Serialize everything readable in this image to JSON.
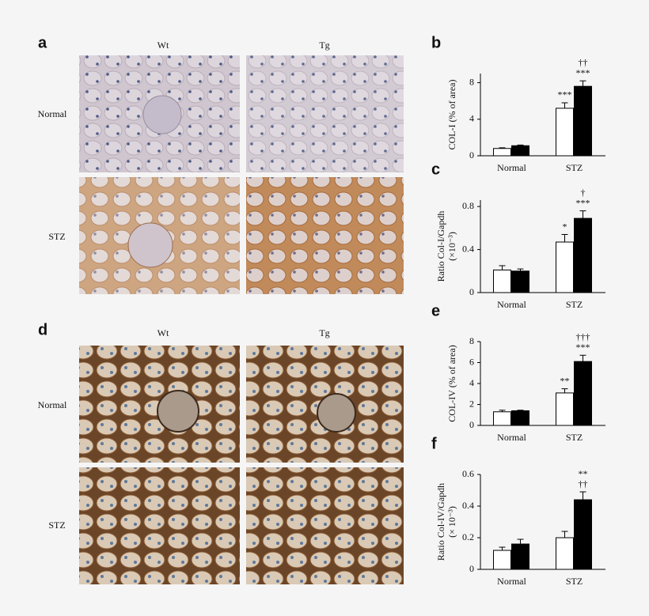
{
  "figure": {
    "panels": [
      {
        "label": "a",
        "columns": [
          "Wt",
          "Tg"
        ],
        "rows": [
          "Normal",
          "STZ"
        ]
      },
      {
        "label": "d",
        "columns": [
          "Wt",
          "Tg"
        ],
        "rows": [
          "Normal",
          "STZ"
        ]
      }
    ]
  },
  "chart_data": [
    {
      "type": "bar",
      "label": "b",
      "ylabel": [
        "COL-I  (% of area)"
      ],
      "categories": [
        "Normal",
        "STZ"
      ],
      "ylim": [
        0,
        9
      ],
      "yticks": [
        0,
        4,
        8
      ],
      "series": [
        {
          "color": "#ffffff",
          "values": [
            0.8,
            5.2
          ],
          "errors": [
            0.08,
            0.6
          ],
          "sig": [
            null,
            [
              "***"
            ]
          ]
        },
        {
          "color": "#000000",
          "values": [
            1.1,
            7.6
          ],
          "errors": [
            0.08,
            0.6
          ],
          "sig": [
            null,
            [
              "††",
              "***"
            ]
          ]
        }
      ]
    },
    {
      "type": "bar",
      "label": "c",
      "ylabel": [
        "Ratio Col-I/Gapdh",
        "(×10⁻³)"
      ],
      "categories": [
        "Normal",
        "STZ"
      ],
      "ylim": [
        0,
        0.86
      ],
      "yticks": [
        0,
        0.4,
        0.8
      ],
      "series": [
        {
          "color": "#ffffff",
          "values": [
            0.21,
            0.47
          ],
          "errors": [
            0.04,
            0.07
          ],
          "sig": [
            null,
            [
              "*"
            ]
          ]
        },
        {
          "color": "#000000",
          "values": [
            0.2,
            0.69
          ],
          "errors": [
            0.02,
            0.07
          ],
          "sig": [
            null,
            [
              "†",
              "***"
            ]
          ]
        }
      ]
    },
    {
      "type": "bar",
      "label": "e",
      "ylabel": [
        "COL-IV (% of area)"
      ],
      "categories": [
        "Normal",
        "STZ"
      ],
      "ylim": [
        0,
        8
      ],
      "yticks": [
        0,
        2,
        4,
        6,
        8
      ],
      "series": [
        {
          "color": "#ffffff",
          "values": [
            1.3,
            3.1
          ],
          "errors": [
            0.15,
            0.4
          ],
          "sig": [
            null,
            [
              "**"
            ]
          ]
        },
        {
          "color": "#000000",
          "values": [
            1.4,
            6.1
          ],
          "errors": [
            0.05,
            0.6
          ],
          "sig": [
            null,
            [
              "†††",
              "***"
            ]
          ]
        }
      ]
    },
    {
      "type": "bar",
      "label": "f",
      "ylabel": [
        "Ratio Col-IV/Gapdh",
        "(× 10⁻³)"
      ],
      "categories": [
        "Normal",
        "STZ"
      ],
      "ylim": [
        0,
        0.6
      ],
      "yticks": [
        0,
        0.2,
        0.4,
        0.6
      ],
      "series": [
        {
          "color": "#ffffff",
          "values": [
            0.12,
            0.2
          ],
          "errors": [
            0.02,
            0.04
          ],
          "sig": [
            null,
            null
          ]
        },
        {
          "color": "#000000",
          "values": [
            0.16,
            0.44
          ],
          "errors": [
            0.03,
            0.05
          ],
          "sig": [
            null,
            [
              "**",
              "††"
            ]
          ]
        }
      ]
    }
  ]
}
